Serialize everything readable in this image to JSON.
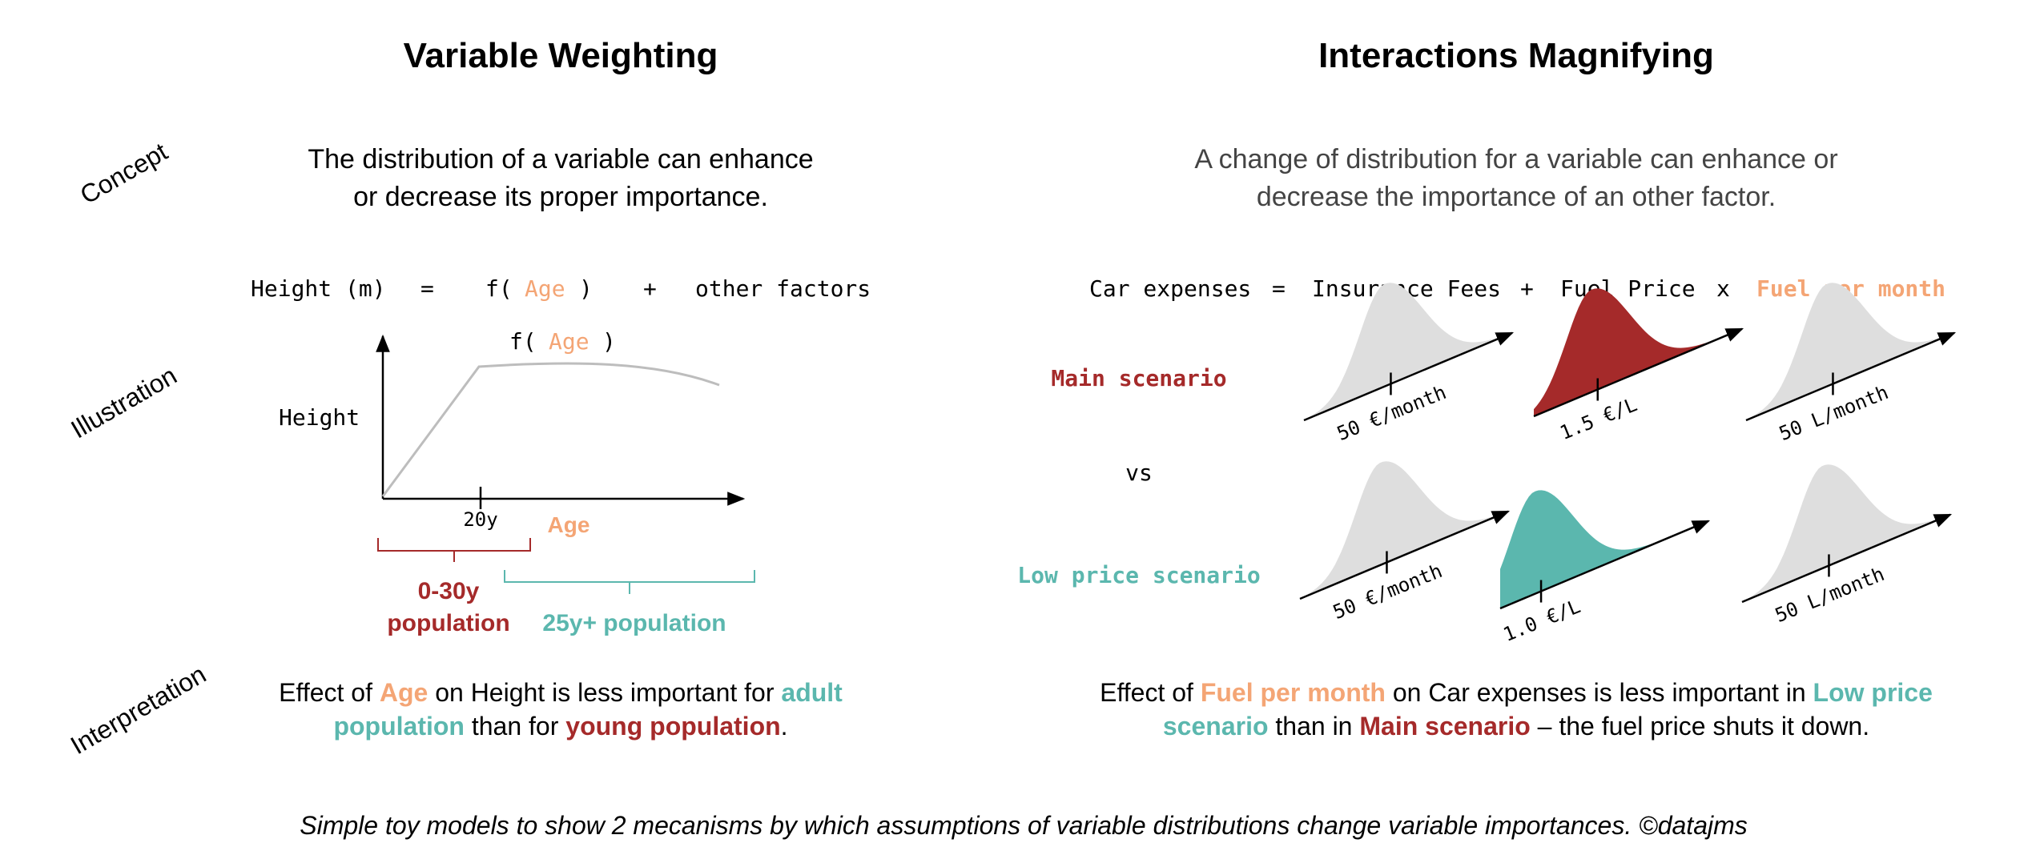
{
  "colors": {
    "orange": "#f4a575",
    "red": "#a52a2a",
    "teal": "#5bb7ae",
    "grey_fill": "#dedede",
    "grey_curve": "#bdbdbd"
  },
  "left": {
    "title": "Variable Weighting",
    "concept_line1": "The distribution of a variable can enhance",
    "concept_line2": "or decrease its proper importance.",
    "equation": {
      "lhs": "Height (m)",
      "eq": "=",
      "f_open": "f(",
      "var": "Age",
      "f_close": ")",
      "plus": "+",
      "rest": "other factors"
    },
    "plot": {
      "curve_label_open": "f(",
      "curve_label_var": "Age",
      "curve_label_close": ")",
      "ylabel": "Height",
      "xlabel": "Age",
      "tick_label": "20y",
      "bracket_young_line1": "0-30y",
      "bracket_young_line2": "population",
      "bracket_adult": "25y+ population"
    },
    "interp": {
      "p1": "Effect of ",
      "p2": "Age",
      "p3": " on Height is less important for ",
      "p4": "adult",
      "p5": "population",
      "p6": " than for ",
      "p7": "young  population",
      "p8": "."
    }
  },
  "right": {
    "title": "Interactions Magnifying",
    "concept_line1": "A change of distribution for a variable can enhance or",
    "concept_line2": "decrease the importance of an other factor.",
    "equation": {
      "lhs": "Car expenses",
      "eq": "=",
      "t1": "Insurance Fees",
      "plus": "+",
      "t2": "Fuel Price",
      "times": "x",
      "t3": "Fuel per month"
    },
    "scenario_main": "Main scenario",
    "vs": "vs",
    "scenario_low": "Low price scenario",
    "dist_labels": {
      "main_fees": "50 €/month",
      "main_price": "1.5 €/L",
      "main_fuel": "50 L/month",
      "low_fees": "50 €/month",
      "low_price": "1.0 €/L",
      "low_fuel": "50 L/month"
    },
    "interp": {
      "p1": "Effect of ",
      "p2": "Fuel per month",
      "p3": " on Car expenses is less important in ",
      "p4": "Low price",
      "p5": "scenario",
      "p6": " than in ",
      "p7": "Main scenario",
      "p8": " – the fuel price shuts it down."
    }
  },
  "row_labels": {
    "concept": "Concept",
    "illustration": "Illustration",
    "interpretation": "Interpretation"
  },
  "footer": "Simple toy models to show 2 mecanisms by which assumptions of variable distributions change variable importances. ©datajms"
}
